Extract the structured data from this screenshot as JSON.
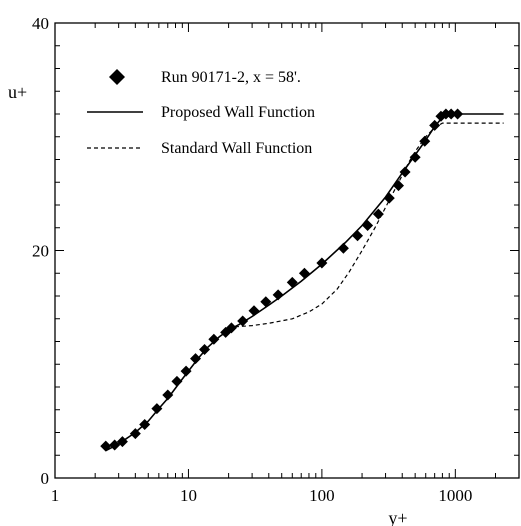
{
  "chart_data": {
    "type": "scatter",
    "title": "",
    "xlabel": "y+",
    "ylabel": "u+",
    "xscale": "log",
    "xlim": [
      1,
      3000
    ],
    "ylim": [
      0,
      40
    ],
    "xticks": [
      1,
      10,
      100,
      1000
    ],
    "xtick_labels": [
      "1",
      "10",
      "100",
      "1000"
    ],
    "yticks": [
      0,
      20,
      40
    ],
    "ytick_labels": [
      "0",
      "20",
      "40"
    ],
    "grid": false,
    "legend_position": "top-left",
    "series": [
      {
        "name": "Run 90171-2, x = 58'.",
        "kind": "markers",
        "marker": "diamond",
        "color": "#000000",
        "points": [
          [
            2.4,
            2.8
          ],
          [
            2.8,
            2.9
          ],
          [
            3.2,
            3.2
          ],
          [
            4.0,
            3.9
          ],
          [
            4.7,
            4.7
          ],
          [
            5.8,
            6.1
          ],
          [
            7.0,
            7.3
          ],
          [
            8.2,
            8.5
          ],
          [
            9.6,
            9.4
          ],
          [
            11.3,
            10.5
          ],
          [
            13.2,
            11.3
          ],
          [
            15.5,
            12.2
          ],
          [
            19.0,
            12.8
          ],
          [
            21.0,
            13.2
          ],
          [
            25.5,
            13.8
          ],
          [
            31.0,
            14.7
          ],
          [
            38.0,
            15.5
          ],
          [
            47.0,
            16.1
          ],
          [
            60.0,
            17.2
          ],
          [
            74.0,
            18.0
          ],
          [
            100.0,
            18.9
          ],
          [
            145.0,
            20.2
          ],
          [
            185.0,
            21.3
          ],
          [
            220.0,
            22.2
          ],
          [
            265.0,
            23.2
          ],
          [
            320.0,
            24.6
          ],
          [
            375.0,
            25.7
          ],
          [
            420.0,
            26.9
          ],
          [
            500.0,
            28.2
          ],
          [
            590.0,
            29.6
          ],
          [
            700.0,
            31.0
          ],
          [
            780.0,
            31.8
          ],
          [
            850.0,
            32.0
          ],
          [
            930.0,
            32.0
          ],
          [
            1040.0,
            32.0
          ]
        ]
      },
      {
        "name": "Proposed Wall Function",
        "kind": "line",
        "dash": "solid",
        "color": "#000000",
        "points": [
          [
            2.4,
            2.4
          ],
          [
            3.0,
            3.0
          ],
          [
            4.0,
            4.0
          ],
          [
            5.0,
            5.0
          ],
          [
            6.0,
            6.1
          ],
          [
            7.0,
            7.0
          ],
          [
            8.0,
            7.9
          ],
          [
            9.0,
            8.7
          ],
          [
            10.0,
            9.4
          ],
          [
            12.0,
            10.6
          ],
          [
            14.0,
            11.5
          ],
          [
            17.0,
            12.4
          ],
          [
            20.0,
            13.0
          ],
          [
            24.0,
            13.5
          ],
          [
            30.0,
            14.2
          ],
          [
            40.0,
            15.2
          ],
          [
            50.0,
            16.0
          ],
          [
            70.0,
            17.3
          ],
          [
            100.0,
            18.8
          ],
          [
            150.0,
            20.7
          ],
          [
            200.0,
            22.2
          ],
          [
            300.0,
            24.7
          ],
          [
            400.0,
            26.8
          ],
          [
            500.0,
            28.4
          ],
          [
            600.0,
            29.7
          ],
          [
            700.0,
            30.9
          ],
          [
            800.0,
            31.7
          ],
          [
            900.0,
            32.0
          ],
          [
            2300.0,
            32.0
          ]
        ]
      },
      {
        "name": "Standard Wall Function",
        "kind": "line",
        "dash": "dashed",
        "color": "#000000",
        "points": [
          [
            20.0,
            13.0
          ],
          [
            23.0,
            13.3
          ],
          [
            30.0,
            13.4
          ],
          [
            40.0,
            13.6
          ],
          [
            60.0,
            14.0
          ],
          [
            80.0,
            14.6
          ],
          [
            100.0,
            15.3
          ],
          [
            130.0,
            16.6
          ],
          [
            160.0,
            18.1
          ],
          [
            200.0,
            20.0
          ],
          [
            250.0,
            22.0
          ],
          [
            300.0,
            23.8
          ],
          [
            350.0,
            25.3
          ],
          [
            400.0,
            26.6
          ],
          [
            450.0,
            27.8
          ],
          [
            500.0,
            28.7
          ],
          [
            600.0,
            30.0
          ],
          [
            700.0,
            30.8
          ],
          [
            800.0,
            31.2
          ],
          [
            1000.0,
            31.2
          ],
          [
            2300.0,
            31.2
          ]
        ]
      }
    ]
  }
}
